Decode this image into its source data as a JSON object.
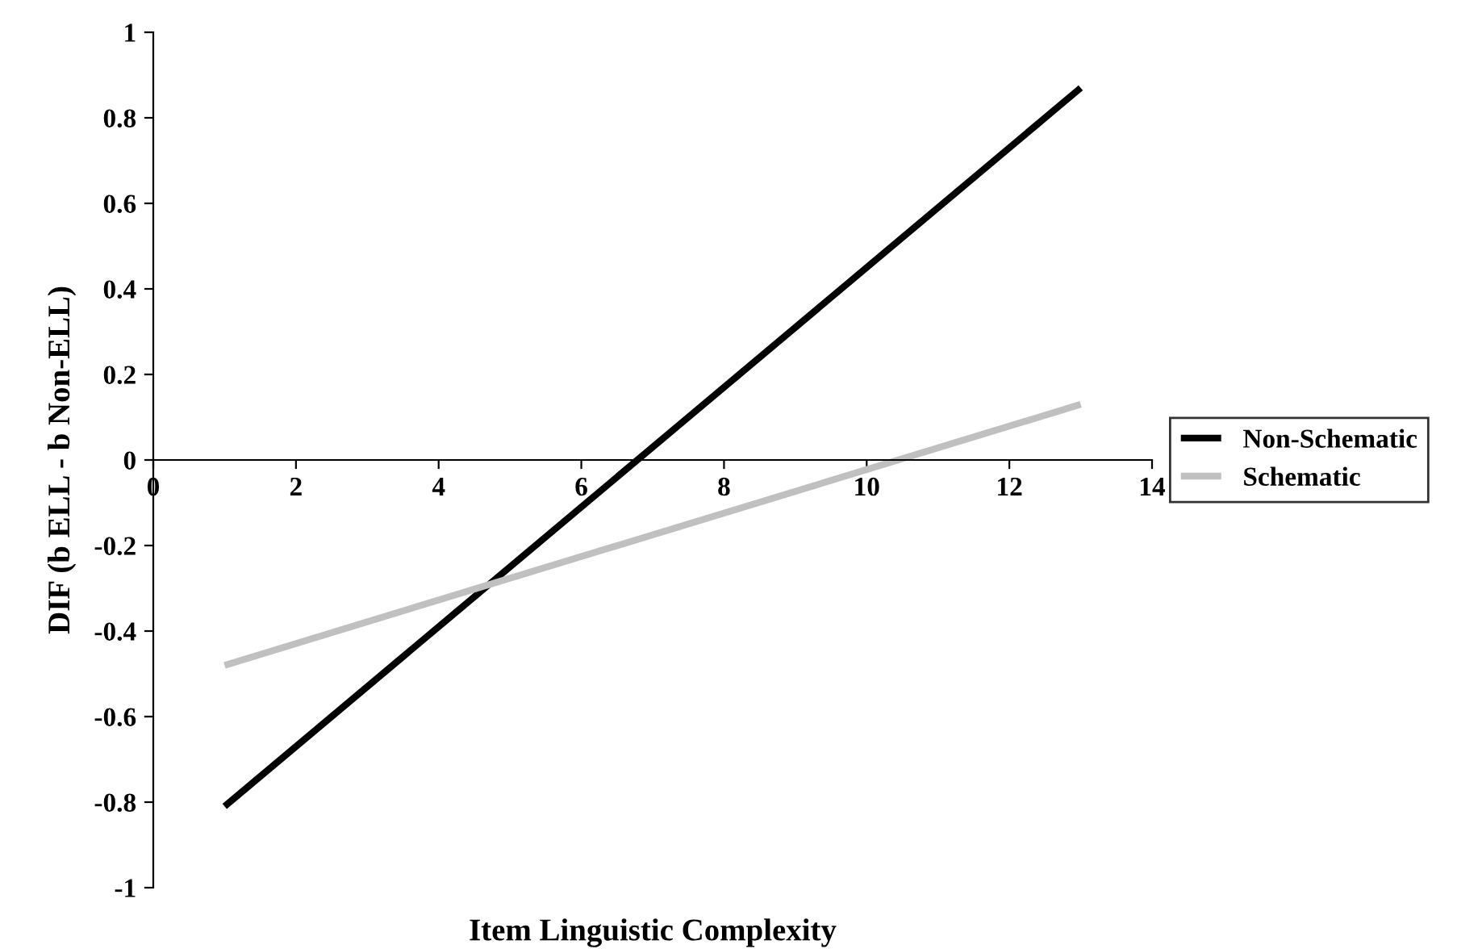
{
  "chart_data": {
    "type": "line",
    "xlabel": "Item Linguistic Complexity",
    "ylabel": "DIF (b ELL - b Non-ELL)",
    "x": [
      1,
      13
    ],
    "series": [
      {
        "name": "Non-Schematic",
        "color": "#000000",
        "values": [
          -0.81,
          0.87
        ]
      },
      {
        "name": "Schematic",
        "color": "#c0c0c0",
        "values": [
          -0.48,
          0.13
        ]
      }
    ],
    "xlim": [
      0,
      14
    ],
    "xticks": [
      0,
      2,
      4,
      6,
      8,
      10,
      12,
      14
    ],
    "ylim": [
      -1,
      1
    ],
    "yticks": [
      {
        "value": -1,
        "label": "-1"
      },
      {
        "value": -0.8,
        "label": "-0.8"
      },
      {
        "value": -0.6,
        "label": "-0.6"
      },
      {
        "value": -0.4,
        "label": "-0.4"
      },
      {
        "value": -0.2,
        "label": "-0.2"
      },
      {
        "value": 0,
        "label": "0"
      },
      {
        "value": 0.2,
        "label": "0.2"
      },
      {
        "value": 0.4,
        "label": "0.4"
      },
      {
        "value": 0.6,
        "label": "0.6"
      },
      {
        "value": 0.8,
        "label": "0.8"
      },
      {
        "value": 1,
        "label": "1"
      }
    ],
    "grid": false,
    "legend": "right",
    "marker": "none",
    "line_style": "solid"
  }
}
